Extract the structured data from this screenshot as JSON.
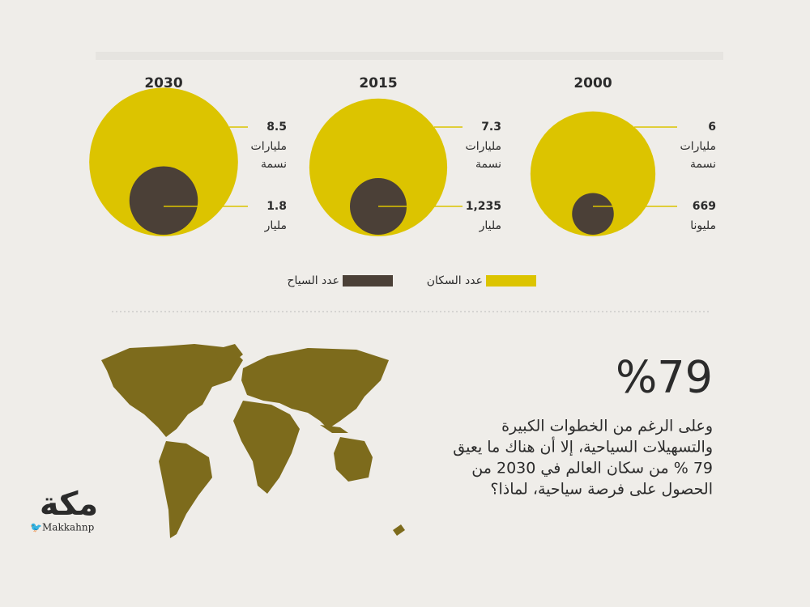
{
  "chart_data": {
    "type": "bubble",
    "categories": [
      "2000",
      "2015",
      "2030"
    ],
    "series": [
      {
        "name": "عدد السكان",
        "color": "#dcc400",
        "values": [
          6,
          7.3,
          8.5
        ],
        "value_labels": [
          "6",
          "7.3",
          "8.5"
        ],
        "value_units": [
          [
            "مليارات",
            "نسمة"
          ],
          [
            "مليارات",
            "نسمة"
          ],
          [
            "مليارات",
            "نسمة"
          ]
        ]
      },
      {
        "name": "عدد السياح",
        "color": "#4b4037",
        "values": [
          0.669,
          1.235,
          1.8
        ],
        "value_labels": [
          "669",
          "1,235",
          "1.8"
        ],
        "value_units": [
          [
            "مليونا"
          ],
          [
            "مليار"
          ],
          [
            "مليار"
          ]
        ]
      }
    ]
  },
  "stat": {
    "headline": "%79",
    "lines": [
      "وعلى الرغم من الخطوات الكبيرة",
      "والتسهيلات السياحية، إلا أن هناك ما يعيق",
      "79 % من سكان العالم في 2030 من",
      "الحصول على فرصة سياحية، لماذا؟"
    ]
  },
  "logo": {
    "name": "مكة",
    "handle": "Makkahnp"
  }
}
